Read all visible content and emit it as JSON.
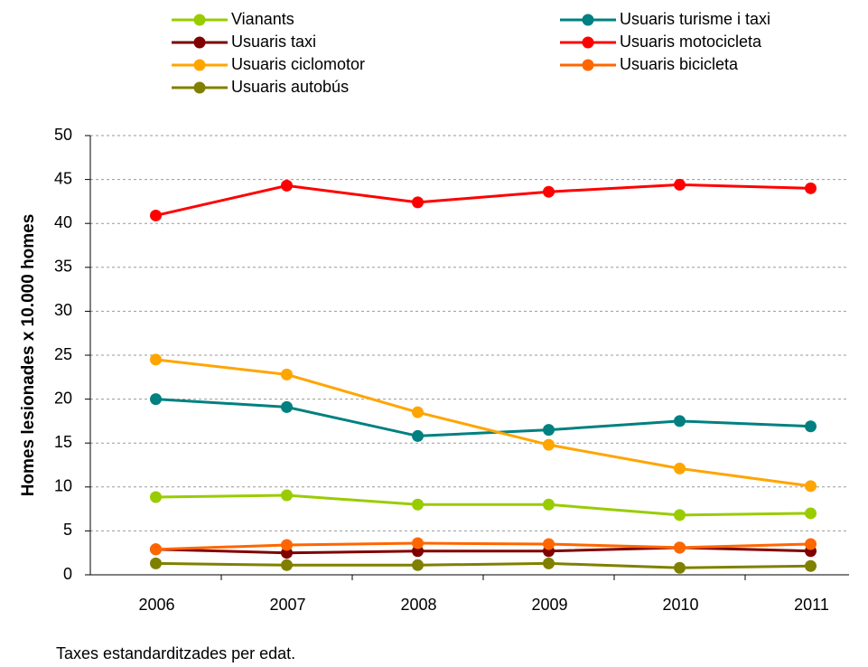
{
  "chart_data": {
    "type": "line",
    "y_label": "Homes lesionades x 10.000 homes",
    "note": "Taxes estandarditzades per edat.",
    "categories": [
      "2006",
      "2007",
      "2008",
      "2009",
      "2010",
      "2011"
    ],
    "series": [
      {
        "name": "Vianants",
        "color": "#99cc00",
        "values": [
          8.85,
          9.05,
          8.0,
          8.0,
          6.8,
          7.0
        ]
      },
      {
        "name": "Usuaris turisme i taxi",
        "color": "#008080",
        "values": [
          20.0,
          19.1,
          15.8,
          16.5,
          17.5,
          16.9
        ]
      },
      {
        "name": "Usuaris taxi",
        "color": "#800000",
        "values": [
          2.9,
          2.5,
          2.7,
          2.7,
          3.1,
          2.7
        ]
      },
      {
        "name": "Usuaris motocicleta",
        "color": "#ff0000",
        "values": [
          40.9,
          44.3,
          42.4,
          43.6,
          44.4,
          44.0
        ]
      },
      {
        "name": "Usuaris ciclomotor",
        "color": "#ffa500",
        "values": [
          24.5,
          22.8,
          18.5,
          14.8,
          12.1,
          10.1
        ]
      },
      {
        "name": "Usuaris bicicleta",
        "color": "#ff6600",
        "values": [
          2.9,
          3.4,
          3.6,
          3.5,
          3.1,
          3.5
        ]
      },
      {
        "name": "Usuaris autobús",
        "color": "#808000",
        "values": [
          1.3,
          1.1,
          1.1,
          1.3,
          0.8,
          1.0
        ]
      }
    ],
    "ylim": [
      0,
      50
    ],
    "yticks": [
      0,
      5,
      10,
      15,
      20,
      25,
      30,
      35,
      40,
      45,
      50
    ],
    "grid": true
  }
}
